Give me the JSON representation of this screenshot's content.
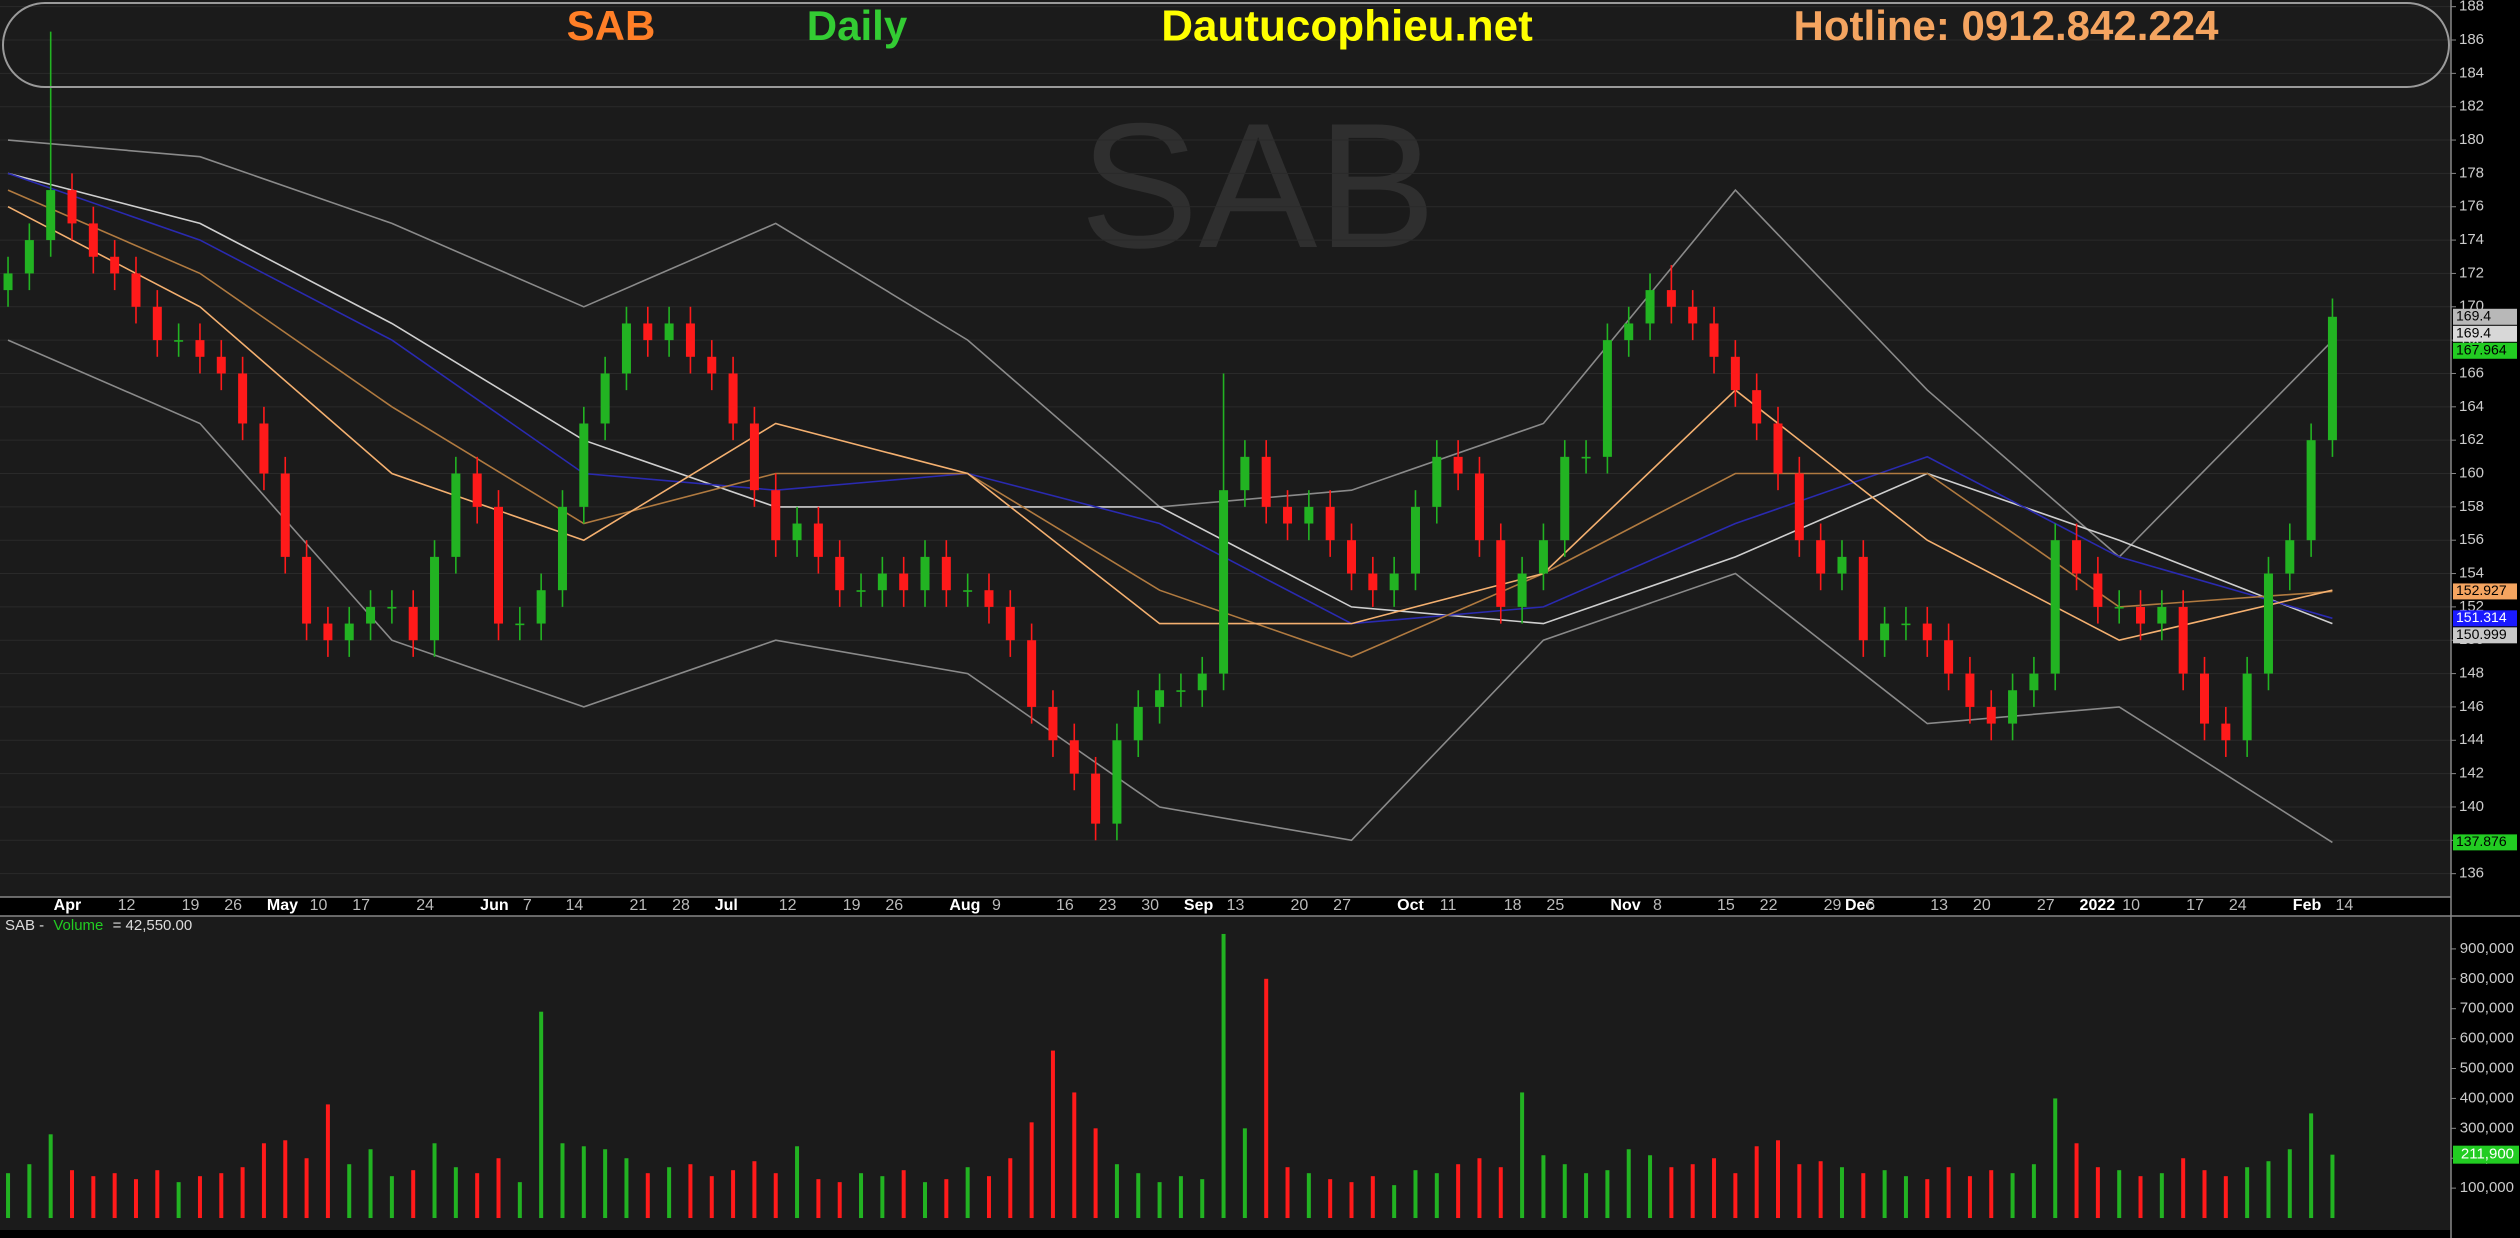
{
  "chart_data": [
    {
      "type": "candlestick",
      "title": "SAB",
      "subtitle": "Daily",
      "source": "Dautucophieu.net",
      "hotline": "Hotline: 0912.842.224",
      "watermark": "SAB",
      "categories": [
        null,
        null,
        "Apr",
        null,
        null,
        "12",
        null,
        null,
        "19",
        null,
        "26",
        null,
        "May",
        null,
        "10",
        null,
        "17",
        null,
        null,
        "24",
        null,
        null,
        "Jun",
        null,
        "7",
        null,
        "14",
        null,
        null,
        "21",
        null,
        "28",
        null,
        "Jul",
        null,
        null,
        "12",
        null,
        null,
        "19",
        null,
        "26",
        null,
        null,
        "Aug",
        null,
        "9",
        null,
        null,
        "16",
        null,
        "23",
        null,
        "30",
        null,
        "Sep",
        null,
        "13",
        null,
        null,
        "20",
        null,
        "27",
        null,
        null,
        "Oct",
        null,
        "11",
        null,
        null,
        "18",
        null,
        "25",
        null,
        null,
        "Nov",
        null,
        "8",
        null,
        null,
        "15",
        null,
        "22",
        null,
        null,
        "29",
        "Dec",
        "6",
        null,
        null,
        "13",
        null,
        "20",
        null,
        null,
        "27",
        null,
        "2022",
        null,
        "10",
        null,
        null,
        "17",
        null,
        "24",
        null,
        null,
        "Feb",
        null,
        "14"
      ],
      "open": [
        171,
        172,
        174,
        177,
        175,
        173,
        172,
        170,
        168,
        168,
        167,
        166,
        163,
        160,
        155,
        151,
        150,
        151,
        152,
        152,
        150,
        155,
        160,
        158,
        151,
        151,
        153,
        158,
        163,
        166,
        169,
        168,
        169,
        167,
        166,
        163,
        159,
        156,
        157,
        155,
        153,
        153,
        154,
        153,
        155,
        153,
        153,
        152,
        150,
        146,
        144,
        142,
        139,
        144,
        146,
        147,
        147,
        148,
        159,
        161,
        158,
        157,
        158,
        156,
        154,
        153,
        154,
        158,
        161,
        160,
        156,
        152,
        154,
        156,
        161,
        161,
        168,
        169,
        171,
        170,
        169,
        167,
        165,
        163,
        160,
        156,
        154,
        155,
        150,
        151,
        151,
        150,
        148,
        146,
        145,
        147,
        148,
        156,
        154,
        152,
        152,
        151,
        152,
        148,
        145,
        144,
        148,
        154,
        156,
        162
      ],
      "high": [
        173,
        175,
        186.5,
        178,
        176,
        174,
        173,
        171,
        169,
        169,
        168,
        167,
        164,
        161,
        156,
        152,
        152,
        153,
        153,
        153,
        156,
        161,
        161,
        159,
        152,
        154,
        159,
        164,
        167,
        170,
        170,
        170,
        170,
        168,
        167,
        164,
        160,
        158,
        158,
        156,
        154,
        155,
        155,
        156,
        156,
        154,
        154,
        153,
        151,
        147,
        145,
        143,
        145,
        147,
        148,
        148,
        149,
        166,
        162,
        162,
        159,
        159,
        159,
        157,
        155,
        155,
        159,
        162,
        162,
        161,
        157,
        155,
        157,
        162,
        162,
        169,
        170,
        172,
        172.5,
        171,
        170,
        168,
        166,
        164,
        161,
        157,
        156,
        156,
        152,
        152,
        152,
        151,
        149,
        147,
        148,
        149,
        157,
        157,
        155,
        153,
        153,
        153,
        153,
        149,
        146,
        149,
        155,
        157,
        163,
        170.5
      ],
      "low": [
        170,
        171,
        173,
        174,
        172,
        171,
        169,
        167,
        167,
        166,
        165,
        162,
        159,
        154,
        150,
        149,
        149,
        150,
        151,
        149,
        149,
        154,
        157,
        150,
        150,
        150,
        152,
        157,
        162,
        165,
        167,
        167,
        166,
        165,
        162,
        158,
        155,
        155,
        154,
        152,
        152,
        152,
        152,
        152,
        152,
        152,
        151,
        149,
        145,
        143,
        141,
        138,
        138,
        143,
        145,
        146,
        146,
        147,
        158,
        157,
        156,
        156,
        155,
        153,
        152,
        152,
        153,
        157,
        159,
        155,
        151,
        151,
        153,
        155,
        160,
        160,
        167,
        168,
        169,
        168,
        166,
        164,
        162,
        159,
        155,
        153,
        153,
        149,
        149,
        150,
        149,
        147,
        145,
        144,
        144,
        146,
        147,
        153,
        151,
        151,
        150,
        150,
        147,
        144,
        143,
        143,
        147,
        153,
        155,
        161
      ],
      "close": [
        172,
        174,
        177,
        175,
        173,
        172,
        170,
        168,
        168,
        167,
        166,
        163,
        160,
        155,
        151,
        150,
        151,
        152,
        152,
        150,
        155,
        160,
        158,
        151,
        151,
        153,
        158,
        163,
        166,
        169,
        168,
        169,
        167,
        166,
        163,
        159,
        156,
        157,
        155,
        153,
        153,
        154,
        153,
        155,
        153,
        153,
        152,
        150,
        146,
        144,
        142,
        139,
        144,
        146,
        147,
        147,
        148,
        159,
        161,
        158,
        157,
        158,
        156,
        154,
        153,
        154,
        158,
        161,
        160,
        156,
        152,
        154,
        156,
        161,
        161,
        168,
        169,
        171,
        170,
        169,
        167,
        165,
        163,
        160,
        156,
        154,
        155,
        150,
        151,
        151,
        150,
        148,
        146,
        145,
        147,
        148,
        156,
        154,
        152,
        152,
        151,
        152,
        148,
        145,
        144,
        148,
        154,
        156,
        162,
        169.4
      ],
      "up_color": "#22b322",
      "down_color": "#ff1a1a",
      "lines": [
        {
          "color": "#8a8a8a",
          "x": [
            0,
            9,
            18,
            27,
            36,
            45,
            54,
            63,
            72,
            81,
            90,
            99,
            109
          ],
          "values": [
            180,
            179,
            175,
            170,
            175,
            168,
            158,
            159,
            163,
            177,
            165,
            155,
            167.964
          ]
        },
        {
          "color": "#8a8a8a",
          "x": [
            0,
            9,
            18,
            27,
            36,
            45,
            54,
            63,
            72,
            81,
            90,
            99,
            109
          ],
          "values": [
            168,
            163,
            150,
            146,
            150,
            148,
            140,
            138,
            150,
            154,
            145,
            146,
            137.876
          ]
        },
        {
          "color": "#cfcfcf",
          "x": [
            0,
            9,
            18,
            27,
            36,
            45,
            54,
            63,
            72,
            81,
            90,
            99,
            109
          ],
          "values": [
            178,
            175,
            169,
            162,
            158,
            158,
            158,
            152,
            151,
            155,
            160,
            156,
            150.999
          ]
        },
        {
          "color": "#2a2ab0",
          "x": [
            0,
            9,
            18,
            27,
            36,
            45,
            54,
            63,
            72,
            81,
            90,
            99,
            109
          ],
          "values": [
            178,
            174,
            168,
            160,
            159,
            160,
            157,
            151,
            152,
            157,
            161,
            155,
            151.314
          ]
        },
        {
          "color": "#b07a40",
          "x": [
            0,
            9,
            18,
            27,
            36,
            45,
            54,
            63,
            72,
            81,
            90,
            99,
            109
          ],
          "values": [
            177,
            172,
            164,
            157,
            160,
            160,
            153,
            149,
            154,
            160,
            160,
            152,
            152.927
          ]
        },
        {
          "color": "#f4b070",
          "x": [
            0,
            9,
            18,
            27,
            36,
            45,
            54,
            63,
            72,
            81,
            90,
            99,
            109
          ],
          "values": [
            176,
            170,
            160,
            156,
            163,
            160,
            151,
            151,
            154,
            165,
            156,
            150,
            153
          ]
        }
      ],
      "markers": [
        {
          "value": 169.4,
          "color": "#b8b8b8"
        },
        {
          "value": 169.4,
          "color": "#d8d8d8"
        },
        {
          "value": 167.964,
          "color": "#22cc22"
        },
        {
          "value": 152.927,
          "color": "#f4a460"
        },
        {
          "value": 151.314,
          "color": "#1a1aff"
        },
        {
          "value": 150.999,
          "color": "#c8c8c8"
        },
        {
          "value": 137.876,
          "color": "#22cc22"
        }
      ],
      "ylim": [
        134.6,
        188.4
      ],
      "yticks": [
        136,
        138,
        140,
        142,
        144,
        146,
        148,
        150,
        152,
        154,
        156,
        158,
        160,
        162,
        164,
        166,
        168,
        170,
        172,
        174,
        176,
        178,
        180,
        182,
        184,
        186,
        188
      ],
      "grid": true
    },
    {
      "type": "bar",
      "legend": [
        "SAB -",
        "Volume",
        "= 42,550.00"
      ],
      "values": [
        150000,
        180000,
        280000,
        160000,
        140000,
        150000,
        130000,
        160000,
        120000,
        140000,
        150000,
        170000,
        250000,
        260000,
        200000,
        380000,
        180000,
        230000,
        140000,
        160000,
        250000,
        170000,
        150000,
        200000,
        120000,
        690000,
        250000,
        240000,
        230000,
        200000,
        150000,
        170000,
        180000,
        140000,
        160000,
        190000,
        150000,
        240000,
        130000,
        120000,
        150000,
        140000,
        160000,
        120000,
        130000,
        170000,
        140000,
        200000,
        320000,
        560000,
        420000,
        300000,
        180000,
        150000,
        120000,
        140000,
        130000,
        950000,
        300000,
        800000,
        170000,
        150000,
        130000,
        120000,
        140000,
        110000,
        160000,
        150000,
        180000,
        200000,
        170000,
        420000,
        210000,
        180000,
        150000,
        160000,
        230000,
        210000,
        170000,
        180000,
        200000,
        150000,
        240000,
        260000,
        180000,
        190000,
        170000,
        150000,
        160000,
        140000,
        130000,
        170000,
        140000,
        160000,
        150000,
        180000,
        400000,
        250000,
        170000,
        160000,
        140000,
        150000,
        200000,
        160000,
        140000,
        170000,
        190000,
        230000,
        350000,
        211900
      ],
      "marker": {
        "value": 211900,
        "label": "211,900",
        "color": "#22cc22"
      },
      "ylim": [
        -40000,
        1010000
      ],
      "yticks": [
        {
          "value": 100000,
          "label": "100,000"
        },
        {
          "value": 200000,
          "label": "200,000"
        },
        {
          "value": 300000,
          "label": "300,000"
        },
        {
          "value": 400000,
          "label": "400,000"
        },
        {
          "value": 500000,
          "label": "500,000"
        },
        {
          "value": 600000,
          "label": "600,000"
        },
        {
          "value": 700000,
          "label": "700,000"
        },
        {
          "value": 800000,
          "label": "800,000"
        },
        {
          "value": 900000,
          "label": "900,000"
        }
      ]
    }
  ]
}
